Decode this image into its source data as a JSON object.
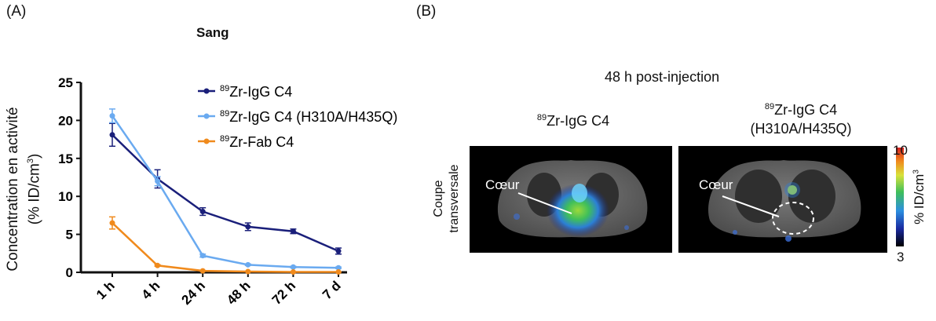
{
  "panel_a": {
    "label": "(A)"
  },
  "panel_b": {
    "label": "(B)",
    "header": "48 h post-injection",
    "image1_title": {
      "sup": "89",
      "text": "Zr-IgG C4"
    },
    "image2_title": {
      "sup": "89",
      "text": "Zr-IgG C4",
      "line2": "(H310A/H435Q)"
    },
    "side_label": [
      "Coupe",
      "transversale"
    ],
    "annotation": "Cœur",
    "colorbar": {
      "max": "10",
      "min": "3",
      "label_prefix": "% ID/cm",
      "label_sup": "3"
    }
  },
  "chart_data": {
    "type": "line",
    "title": "Sang",
    "ylabel_line1": "Concentration en activité",
    "ylabel_line2_prefix": "(% ID/cm",
    "ylabel_line2_sup": "3",
    "ylabel_line2_suffix": ")",
    "categories": [
      "1 h",
      "4 h",
      "24 h",
      "48 h",
      "72 h",
      "7 d"
    ],
    "ylim": [
      0,
      25
    ],
    "yticks": [
      0,
      5,
      10,
      15,
      20,
      25
    ],
    "legend_position": "top-right",
    "series": [
      {
        "name_sup": "89",
        "name": "Zr-IgG C4",
        "color": "#1a1f7a",
        "values": [
          18.1,
          12.3,
          8.0,
          6.0,
          5.4,
          2.8
        ],
        "errors": [
          1.5,
          1.2,
          0.5,
          0.5,
          0.3,
          0.4
        ]
      },
      {
        "name_sup": "89",
        "name": "Zr-IgG C4 (H310A/H435Q)",
        "color": "#6aaaf0",
        "values": [
          20.6,
          12.0,
          2.2,
          1.0,
          0.7,
          0.6
        ],
        "errors": [
          0.9,
          0.6,
          0.2,
          0.1,
          0.1,
          0.1
        ]
      },
      {
        "name_sup": "89",
        "name": "Zr-Fab C4",
        "color": "#f08a1c",
        "values": [
          6.5,
          0.9,
          0.2,
          0.1,
          0.05,
          0.05
        ],
        "errors": [
          0.8,
          0.1,
          0.05,
          0.03,
          0.02,
          0.02
        ]
      }
    ]
  }
}
